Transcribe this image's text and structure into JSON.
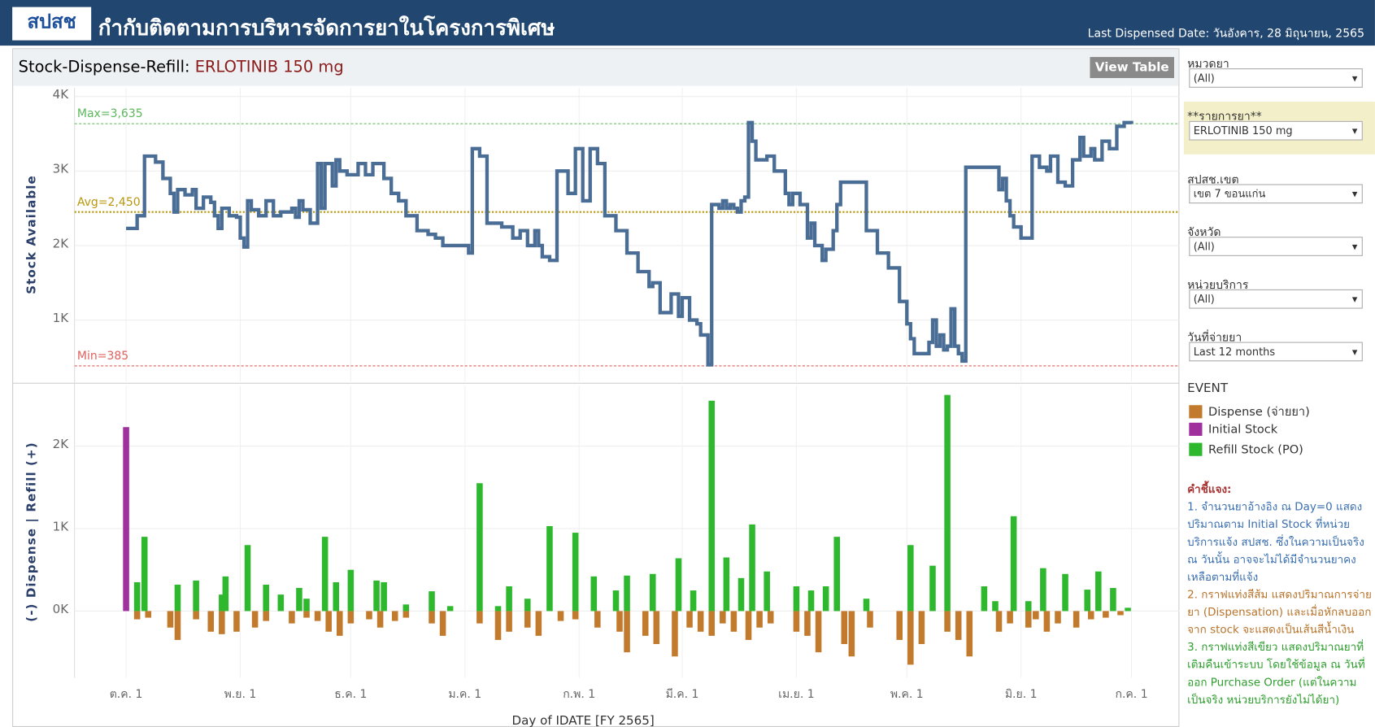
{
  "header": {
    "logo": "สปสช",
    "title": "กำกับติดตามการบริหารจัดการยาในโครงการพิเศษ",
    "last_dispensed": "Last Dispensed Date: วันอังคาร, 28 มิถุนายน, 2565"
  },
  "panel": {
    "title_prefix": "Stock-Dispense-Refill: ",
    "drug": "ERLOTINIB 150 mg",
    "view_table": "View Table"
  },
  "chart_data": [
    {
      "type": "line",
      "y_label": "Stock Available",
      "step": true,
      "color": "#4a6d96",
      "xlim": [
        -14,
        286
      ],
      "ylim": [
        176,
        4118
      ],
      "yticks": [
        {
          "value": 1000,
          "label": "1K"
        },
        {
          "value": 2000,
          "label": "2K"
        },
        {
          "value": 3000,
          "label": "3K"
        },
        {
          "value": 4000,
          "label": "4K"
        }
      ],
      "x": [
        0,
        3,
        5,
        8,
        10,
        12,
        13,
        14,
        16,
        18,
        19,
        21,
        23,
        24,
        25,
        26,
        28,
        30,
        31,
        32,
        33,
        34,
        36,
        38,
        40,
        42,
        45,
        46,
        47,
        48,
        50,
        52,
        53,
        54,
        56,
        57,
        58,
        60,
        63,
        65,
        67,
        70,
        72,
        74,
        76,
        79,
        82,
        84,
        86,
        92,
        93,
        94,
        96,
        98,
        102,
        105,
        107,
        109,
        111,
        112,
        113,
        115,
        117,
        120,
        122,
        124,
        126,
        128,
        130,
        133,
        136,
        139,
        142,
        143,
        145,
        148,
        150,
        151,
        153,
        155,
        156,
        158,
        159,
        161,
        162,
        163,
        164,
        165,
        166,
        167,
        168,
        169,
        170,
        171,
        174,
        176,
        179,
        180,
        181,
        183,
        185,
        186,
        187,
        189,
        190,
        192,
        193,
        194,
        200,
        201,
        204,
        207,
        210,
        212,
        213,
        214,
        218,
        219,
        220,
        221,
        222,
        223,
        224,
        225,
        226,
        227,
        228,
        235,
        237,
        238,
        239,
        240,
        241,
        243,
        246,
        248,
        250,
        251,
        253,
        255,
        257,
        259,
        260,
        262,
        263,
        265,
        267,
        269,
        271,
        273
      ],
      "values": [
        2230,
        2400,
        3200,
        3120,
        2900,
        2700,
        2450,
        2750,
        2680,
        2750,
        2500,
        2650,
        2580,
        2400,
        2230,
        2500,
        2400,
        2380,
        2100,
        1980,
        2600,
        2480,
        2400,
        2600,
        2400,
        2450,
        2500,
        2380,
        2600,
        2480,
        2300,
        3100,
        2500,
        3100,
        2800,
        3150,
        3000,
        2950,
        3100,
        2950,
        3100,
        2900,
        2700,
        2600,
        2400,
        2200,
        2150,
        2100,
        2000,
        2000,
        1900,
        3300,
        3200,
        2300,
        2250,
        2100,
        2200,
        2000,
        2200,
        2000,
        1850,
        1800,
        3000,
        2700,
        3300,
        2600,
        3300,
        3100,
        2400,
        2200,
        1900,
        1650,
        1450,
        1500,
        1100,
        1350,
        1050,
        1300,
        1000,
        950,
        800,
        400,
        2550,
        2500,
        2600,
        2500,
        2550,
        2500,
        2450,
        2600,
        2650,
        3650,
        3400,
        3150,
        3200,
        3000,
        2700,
        2550,
        2700,
        2550,
        2100,
        2300,
        2000,
        1800,
        1950,
        2200,
        2550,
        2850,
        2850,
        2200,
        1900,
        1700,
        1250,
        950,
        750,
        550,
        700,
        1000,
        650,
        800,
        600,
        650,
        1150,
        650,
        550,
        450,
        3050,
        3050,
        2750,
        2900,
        2600,
        2400,
        2250,
        2100,
        3200,
        3050,
        3000,
        3200,
        2850,
        2800,
        3150,
        3450,
        3200,
        3300,
        3150,
        3400,
        3300,
        3600,
        3650,
        3635
      ],
      "reference_lines": [
        {
          "label": "Max=3,635",
          "value": 3635,
          "color": "#5cb85c"
        },
        {
          "label": "Avg=2,450",
          "value": 2450,
          "color": "#b8960c"
        },
        {
          "label": "Min=385",
          "value": 385,
          "color": "#e0605e"
        }
      ]
    },
    {
      "type": "bar",
      "y_label": "(-) Dispense | Refill (+)",
      "x_label": "Day of IDATE [FY 2565]",
      "xlim": [
        -14,
        286
      ],
      "ylim": [
        -810,
        2730
      ],
      "xticks": [
        {
          "value": 0,
          "label": "ต.ค. 1"
        },
        {
          "value": 31,
          "label": "พ.ย. 1"
        },
        {
          "value": 61,
          "label": "ธ.ค. 1"
        },
        {
          "value": 92,
          "label": "ม.ค. 1"
        },
        {
          "value": 123,
          "label": "ก.พ. 1"
        },
        {
          "value": 151,
          "label": "มี.ค. 1"
        },
        {
          "value": 182,
          "label": "เม.ย. 1"
        },
        {
          "value": 212,
          "label": "พ.ค. 1"
        },
        {
          "value": 243,
          "label": "มิ.ย. 1"
        },
        {
          "value": 273,
          "label": "ก.ค. 1"
        }
      ],
      "yticks": [
        {
          "value": 0,
          "label": "0K"
        },
        {
          "value": 1000,
          "label": "1K"
        },
        {
          "value": 2000,
          "label": "2K"
        }
      ],
      "legend_title": "EVENT",
      "series": [
        {
          "name": "Dispense (จ่ายยา)",
          "color": "#c27a2c",
          "x": [
            3,
            6,
            12,
            14,
            19,
            23,
            26,
            30,
            35,
            38,
            45,
            49,
            52,
            55,
            58,
            61,
            66,
            69,
            73,
            76,
            83,
            86,
            96,
            101,
            104,
            109,
            112,
            118,
            122,
            128,
            134,
            136,
            141,
            144,
            149,
            153,
            156,
            159,
            162,
            165,
            169,
            172,
            175,
            182,
            185,
            188,
            195,
            197,
            202,
            210,
            213,
            216,
            223,
            226,
            229,
            237,
            240,
            245,
            247,
            250,
            253,
            258,
            262,
            266,
            270
          ],
          "values": [
            -100,
            -80,
            -200,
            -350,
            -100,
            -250,
            -280,
            -250,
            -200,
            -120,
            -150,
            -80,
            -120,
            -250,
            -300,
            -150,
            -100,
            -200,
            -120,
            -80,
            -150,
            -300,
            -150,
            -350,
            -250,
            -200,
            -300,
            -120,
            -100,
            -200,
            -250,
            -500,
            -300,
            -400,
            -550,
            -200,
            -250,
            -300,
            -150,
            -250,
            -350,
            -200,
            -150,
            -250,
            -300,
            -500,
            -400,
            -550,
            -200,
            -350,
            -650,
            -400,
            -250,
            -350,
            -550,
            -250,
            -150,
            -200,
            -100,
            -250,
            -150,
            -200,
            -100,
            -80,
            -50
          ]
        },
        {
          "name": "Initial Stock",
          "color": "#a1309f",
          "x": [
            0
          ],
          "values": [
            2230
          ]
        },
        {
          "name": "Refill Stock (PO)",
          "color": "#2eb82e",
          "x": [
            3,
            5,
            14,
            19,
            26,
            27,
            33,
            38,
            42,
            47,
            49,
            54,
            57,
            61,
            68,
            70,
            76,
            83,
            88,
            96,
            101,
            104,
            109,
            115,
            122,
            127,
            133,
            136,
            143,
            150,
            154,
            159,
            163,
            167,
            170,
            174,
            182,
            186,
            190,
            193,
            201,
            213,
            219,
            223,
            233,
            236,
            241,
            245,
            249,
            255,
            261,
            264,
            268,
            272
          ],
          "values": [
            350,
            900,
            320,
            370,
            200,
            420,
            800,
            320,
            200,
            280,
            150,
            900,
            350,
            500,
            370,
            350,
            80,
            240,
            60,
            1550,
            60,
            300,
            150,
            1030,
            950,
            420,
            250,
            430,
            450,
            640,
            250,
            2550,
            650,
            400,
            1050,
            480,
            300,
            250,
            300,
            900,
            150,
            800,
            550,
            2620,
            300,
            120,
            1150,
            120,
            520,
            450,
            260,
            480,
            280,
            40
          ]
        }
      ]
    }
  ],
  "filters": [
    {
      "label": "หมวดยา",
      "value": "(All)",
      "highlight": false
    },
    {
      "label": "**รายการยา**",
      "value": "ERLOTINIB 150 mg",
      "highlight": true
    },
    {
      "label": "สปสช.เขต",
      "value": "เขต 7 ขอนแก่น",
      "highlight": false
    },
    {
      "label": "จังหวัด",
      "value": "(All)",
      "highlight": false
    },
    {
      "label": "หน่วยบริการ",
      "value": "(All)",
      "highlight": false
    },
    {
      "label": "วันที่จ่ายยา",
      "value": "Last 12 months",
      "highlight": false
    }
  ],
  "notes": {
    "title": "คำชี้แจง:",
    "items": [
      {
        "text": "1. จำนวนยาอ้างอิง ณ Day=0 แสดงปริมาณตาม Initial Stock ที่หน่วยบริการแจ้ง สปสช. ซึ่งในความเป็นจริง ณ วันนั้น อาจจะไม่ได้มีจำนวนยาคงเหลือตามที่แจ้ง",
        "color": "#3a6fb0"
      },
      {
        "text": "2. กราฟแท่งสีส้ม แสดงปริมาณการจ่ายยา (Dispensation) และเมื่อหักลบออกจาก stock จะแสดงเป็นเส้นสีน้ำเงิน",
        "color": "#b8742c"
      },
      {
        "text": "3. กราฟแท่งสีเขียว แสดงปริมาณยาที่เติมคืนเข้าระบบ โดยใช้ข้อมูล ณ วันที่ออก Purchase Order (แต่ในความเป็นจริง หน่วยบริการยังไม่ได้ยา)",
        "color": "#2e9e2e"
      }
    ]
  }
}
